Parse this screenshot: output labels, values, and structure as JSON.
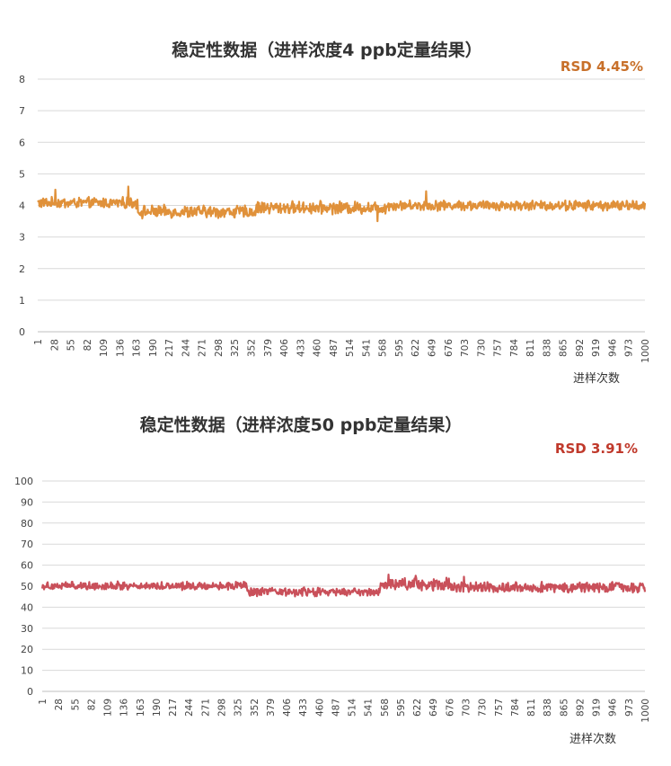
{
  "chart_data": [
    {
      "type": "line",
      "title": "稳定性数据（进样浓度4 ppb定量结果）",
      "annotation": "RSD 4.45%",
      "xlabel": "进样次数",
      "ylabel": "",
      "ylim": [
        0,
        8
      ],
      "yticks": [
        0,
        1,
        2,
        3,
        4,
        5,
        6,
        7,
        8
      ],
      "xlim": [
        1,
        1000
      ],
      "xticks": [
        1,
        28,
        55,
        82,
        109,
        136,
        163,
        190,
        217,
        244,
        271,
        298,
        325,
        352,
        379,
        406,
        433,
        460,
        487,
        514,
        541,
        568,
        595,
        622,
        649,
        676,
        703,
        730,
        757,
        784,
        811,
        838,
        865,
        892,
        919,
        946,
        973,
        1000
      ],
      "grid": true,
      "legend": "none",
      "color": "#E0913A",
      "annotation_color": "#C8702A",
      "series_summary": {
        "n_points": 1000,
        "segments": [
          {
            "from": 1,
            "to": 165,
            "mean": 4.08,
            "amplitude": 0.14
          },
          {
            "from": 166,
            "to": 360,
            "mean": 3.8,
            "amplitude": 0.16
          },
          {
            "from": 361,
            "to": 575,
            "mean": 3.93,
            "amplitude": 0.16
          },
          {
            "from": 576,
            "to": 1000,
            "mean": 4.0,
            "amplitude": 0.13
          }
        ],
        "spikes": [
          {
            "x": 30,
            "y": 4.5
          },
          {
            "x": 150,
            "y": 4.6
          },
          {
            "x": 560,
            "y": 3.5
          },
          {
            "x": 640,
            "y": 4.45
          }
        ]
      }
    },
    {
      "type": "line",
      "title": "稳定性数据（进样浓度50 ppb定量结果）",
      "annotation": "RSD 3.91%",
      "xlabel": "进样次数",
      "ylabel": "",
      "ylim": [
        0,
        100
      ],
      "yticks": [
        0,
        10,
        20,
        30,
        40,
        50,
        60,
        70,
        80,
        90,
        100
      ],
      "xlim": [
        1,
        1000
      ],
      "xticks": [
        1,
        28,
        55,
        82,
        109,
        136,
        163,
        190,
        217,
        244,
        271,
        298,
        325,
        352,
        379,
        406,
        433,
        460,
        487,
        514,
        541,
        568,
        595,
        622,
        649,
        676,
        703,
        730,
        757,
        784,
        811,
        838,
        865,
        892,
        919,
        946,
        973,
        1000
      ],
      "grid": true,
      "legend": "none",
      "color": "#C9505A",
      "annotation_color": "#C0392B",
      "series_summary": {
        "n_points": 1000,
        "segments": [
          {
            "from": 1,
            "to": 340,
            "mean": 50.2,
            "amplitude": 1.6
          },
          {
            "from": 341,
            "to": 560,
            "mean": 47.2,
            "amplitude": 1.7
          },
          {
            "from": 561,
            "to": 680,
            "mean": 51.0,
            "amplitude": 2.4
          },
          {
            "from": 681,
            "to": 1000,
            "mean": 49.5,
            "amplitude": 2.0
          }
        ],
        "spikes": [
          {
            "x": 575,
            "y": 55.5
          },
          {
            "x": 620,
            "y": 55.0
          },
          {
            "x": 700,
            "y": 54.5
          }
        ]
      }
    }
  ]
}
